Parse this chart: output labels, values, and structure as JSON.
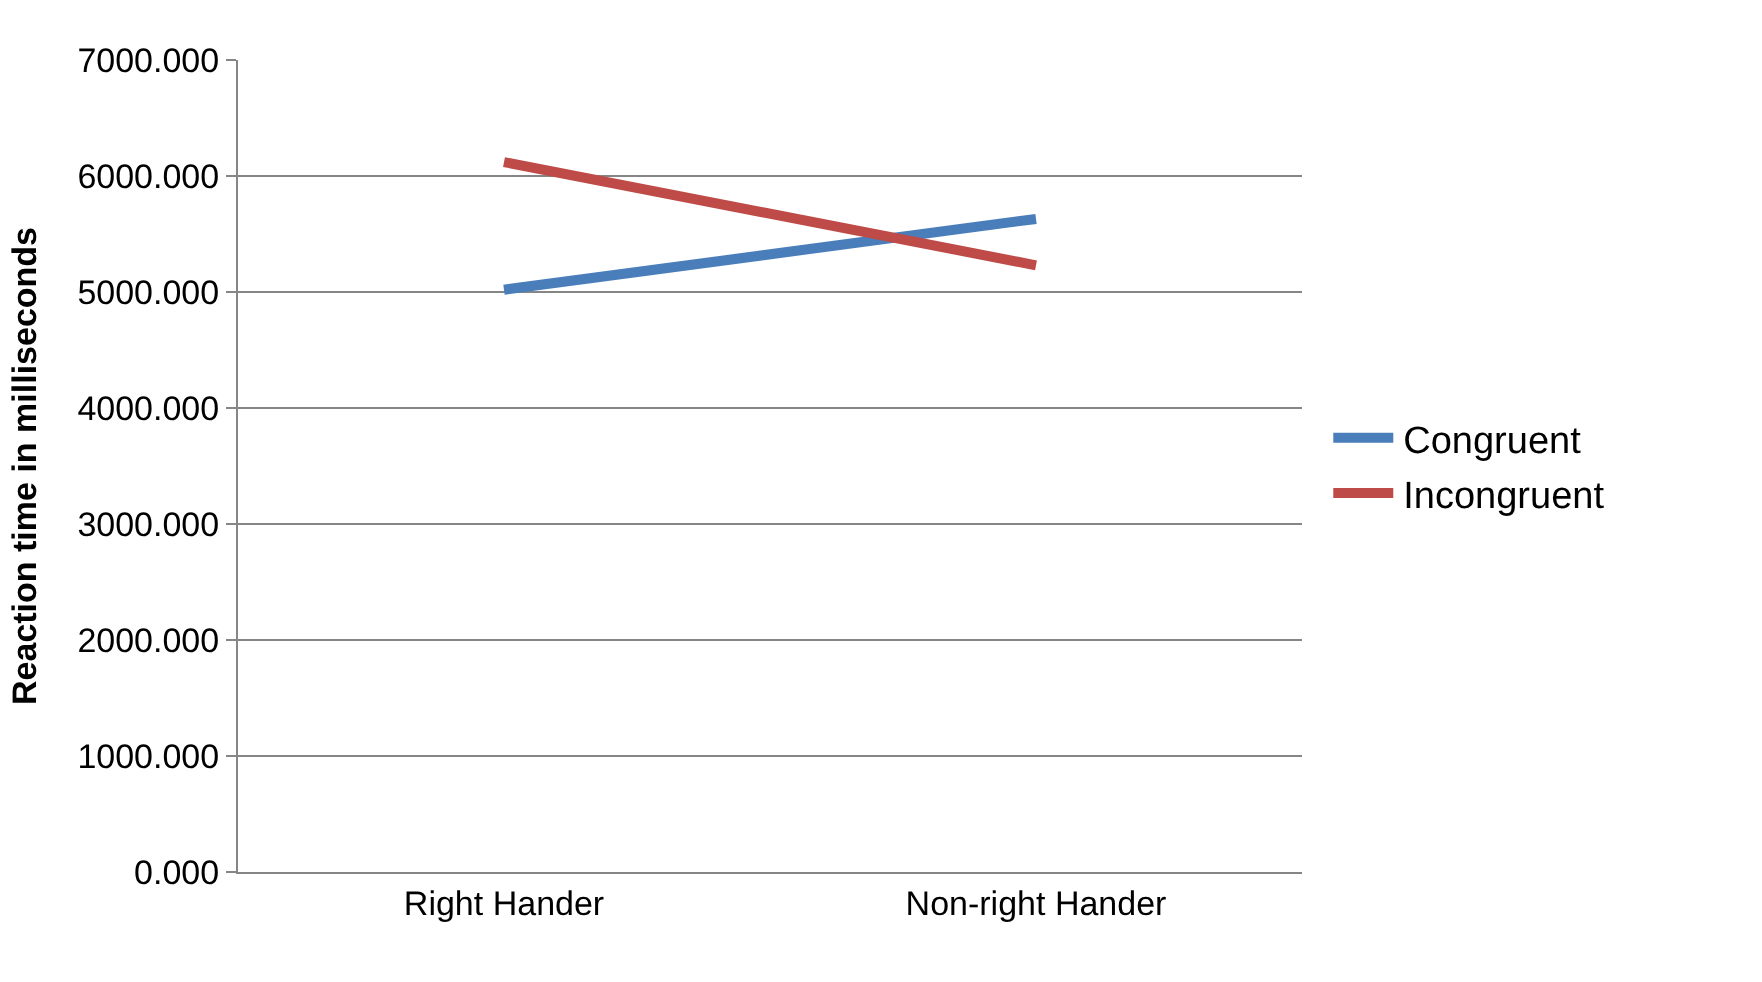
{
  "chart_data": {
    "type": "line",
    "ylabel": "Reaction time in milliseconds",
    "categories": [
      "Right Hander",
      "Non-right Hander"
    ],
    "series": [
      {
        "name": "Congruent",
        "color": "#4a7ebb",
        "values": [
          5020,
          5630
        ]
      },
      {
        "name": "Incongruent",
        "color": "#be4b48",
        "values": [
          6120,
          5230
        ]
      }
    ],
    "ylim": [
      0,
      7000
    ],
    "yticks": [
      {
        "value": 0,
        "label": "0.000"
      },
      {
        "value": 1000,
        "label": "1000.000"
      },
      {
        "value": 2000,
        "label": "2000.000"
      },
      {
        "value": 3000,
        "label": "3000.000"
      },
      {
        "value": 4000,
        "label": "4000.000"
      },
      {
        "value": 5000,
        "label": "5000.000"
      },
      {
        "value": 6000,
        "label": "6000.000"
      },
      {
        "value": 7000,
        "label": "7000.000"
      }
    ],
    "grid": "y",
    "legend": "right",
    "marker": "none",
    "line_style": "solid"
  }
}
